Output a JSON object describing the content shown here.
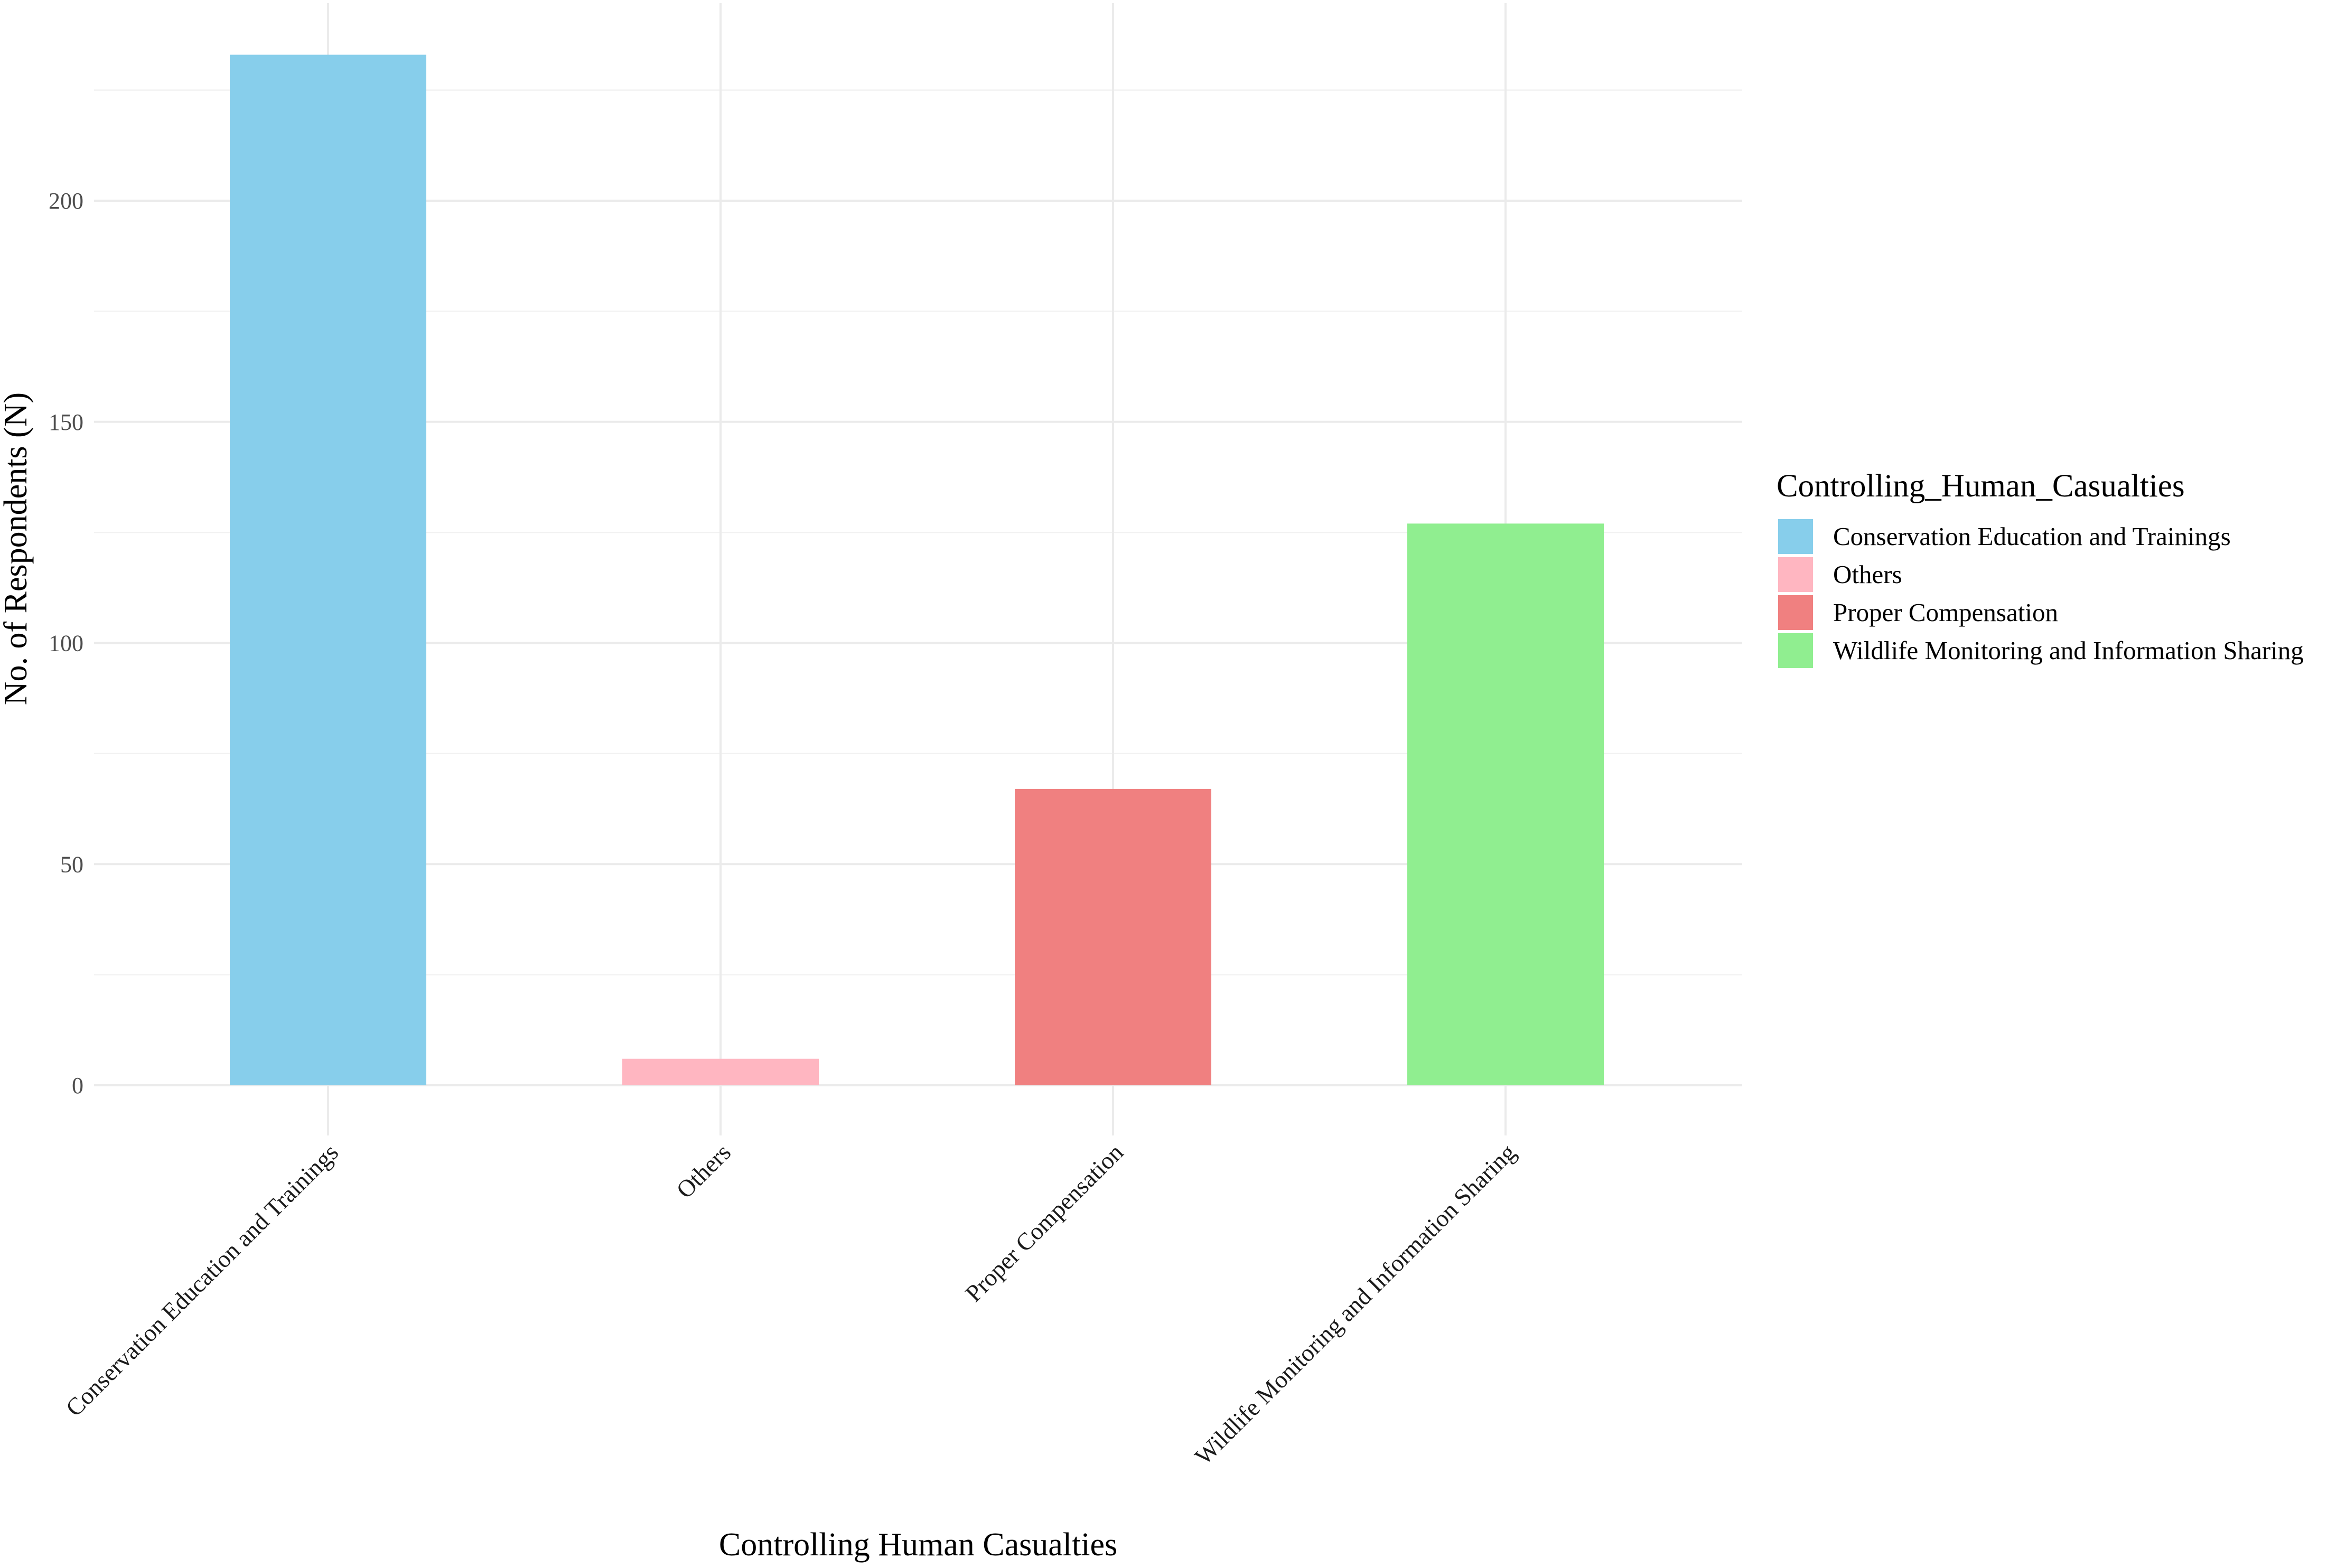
{
  "chart_data": {
    "type": "bar",
    "categories": [
      "Conservation Education and Trainings",
      "Others",
      "Proper Compensation",
      "Wildlife Monitoring and Information Sharing"
    ],
    "values": [
      233,
      6,
      67,
      127
    ],
    "colors": [
      "#87CEEB",
      "#FFB6C1",
      "#F08080",
      "#90EE90"
    ],
    "xlabel": "Controlling Human Casualties",
    "ylabel": "No. of Respondents (N)",
    "ylim": [
      0,
      245
    ],
    "yticks": [
      0,
      50,
      100,
      150,
      200
    ],
    "grid": true,
    "legend": {
      "title": "Controlling_Human_Casualties",
      "position": "right",
      "entries": [
        "Conservation Education and Trainings",
        "Others",
        "Proper Compensation",
        "Wildlife Monitoring and Information Sharing"
      ]
    }
  }
}
